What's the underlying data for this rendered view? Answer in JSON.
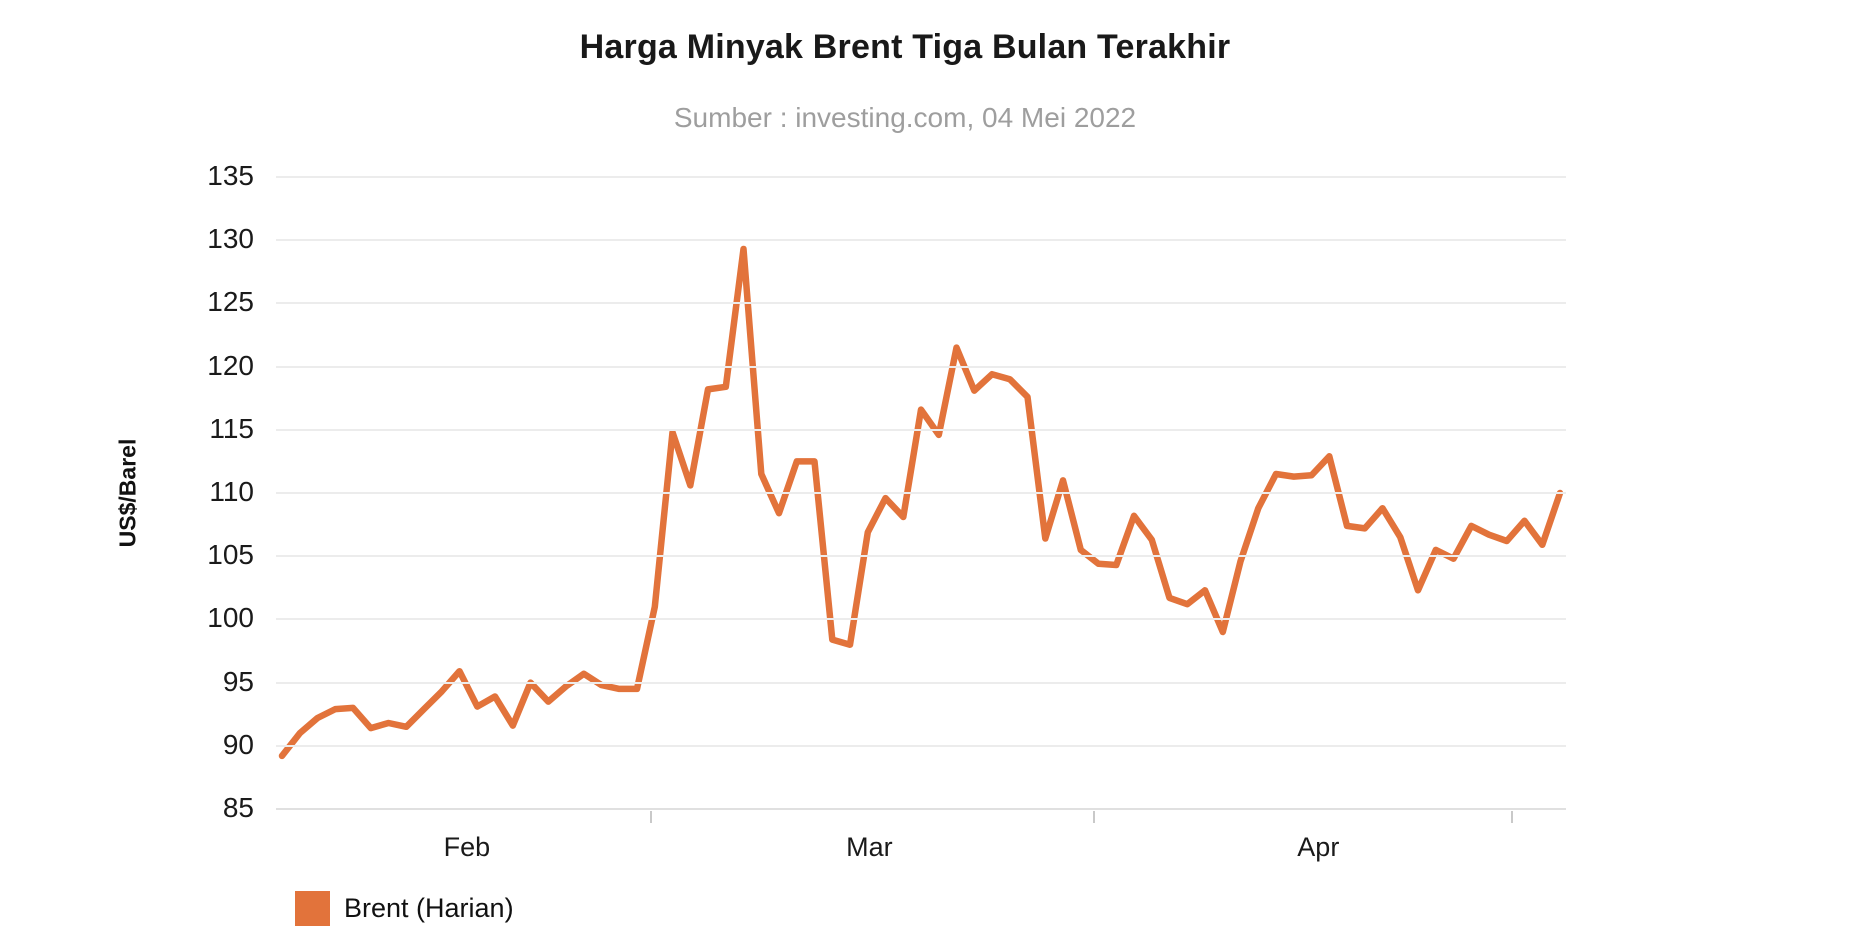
{
  "header": {
    "title": "Harga Minyak Brent Tiga Bulan Terakhir",
    "subtitle": "Sumber : investing.com, 04 Mei 2022"
  },
  "legend": {
    "label": "Brent (Harian)",
    "swatch_color": "#e2733b"
  },
  "colors": {
    "line": "#e2733b",
    "gridline": "#ececec",
    "axis_line": "#e0e0e0",
    "tick": "#c9c9c9",
    "tick_label": "#1a1a1a",
    "title": "#191919",
    "subtitle": "#9e9e9e"
  },
  "chart_data": {
    "type": "line",
    "title": "Harga Minyak Brent Tiga Bulan Terakhir",
    "source_note": "Sumber : investing.com, 04 Mei 2022",
    "xlabel": "",
    "ylabel": "US$/Barel",
    "ylim": [
      85,
      135
    ],
    "y_ticks": [
      85,
      90,
      95,
      100,
      105,
      110,
      115,
      120,
      125,
      130,
      135
    ],
    "grid": true,
    "legend_position": "bottom-left",
    "x_tick_labels": [
      "Feb",
      "Mar",
      "Apr"
    ],
    "x_tick_label_positions": [
      0.148,
      0.46,
      0.808
    ],
    "x_boundary_tick_positions": [
      0.29,
      0.633,
      0.957
    ],
    "series": [
      {
        "name": "Brent (Harian)",
        "color": "#e2733b",
        "unit": "US$/Barel",
        "values": [
          89.2,
          91.0,
          92.2,
          92.9,
          93.0,
          91.4,
          91.8,
          91.5,
          92.9,
          94.3,
          95.9,
          93.1,
          93.9,
          91.6,
          95.0,
          93.5,
          94.7,
          95.7,
          94.8,
          94.5,
          94.5,
          101.0,
          114.8,
          110.6,
          118.2,
          118.4,
          129.3,
          111.5,
          108.4,
          112.5,
          112.5,
          98.4,
          98.0,
          106.9,
          109.6,
          108.1,
          116.6,
          114.6,
          121.5,
          118.1,
          119.4,
          119.0,
          117.6,
          106.4,
          111.0,
          105.5,
          104.4,
          104.3,
          108.2,
          106.3,
          101.7,
          101.2,
          102.3,
          99.0,
          104.6,
          108.8,
          111.5,
          111.3,
          111.4,
          112.9,
          107.4,
          107.2,
          108.8,
          106.5,
          102.3,
          105.5,
          104.8,
          107.4,
          106.7,
          106.2,
          107.8,
          105.9,
          110.0
        ]
      }
    ]
  }
}
